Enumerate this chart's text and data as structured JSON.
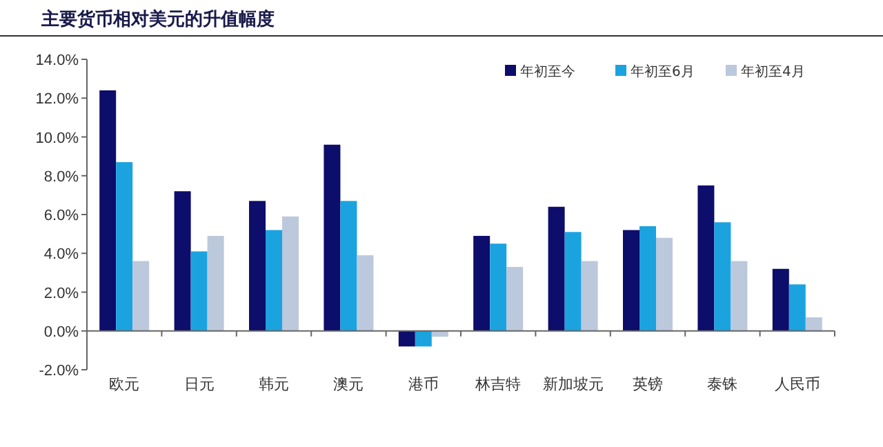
{
  "chart_data": {
    "type": "bar",
    "title": "主要货币相对美元的升值幅度",
    "categories": [
      "欧元",
      "日元",
      "韩元",
      "澳元",
      "港币",
      "林吉特",
      "新加坡元",
      "英镑",
      "泰铢",
      "人民币"
    ],
    "series": [
      {
        "name": "年初至今",
        "color": "#0d0d6b",
        "values": [
          12.4,
          7.2,
          6.7,
          9.6,
          -0.8,
          4.9,
          6.4,
          5.2,
          7.5,
          3.2
        ]
      },
      {
        "name": "年初至6月",
        "color": "#1ba3e0",
        "values": [
          8.7,
          4.1,
          5.2,
          6.7,
          -0.8,
          4.5,
          5.1,
          5.4,
          5.6,
          2.4
        ]
      },
      {
        "name": "年初至4月",
        "color": "#bcc8dc",
        "values": [
          3.6,
          4.9,
          5.9,
          3.9,
          -0.3,
          3.3,
          3.6,
          4.8,
          3.6,
          0.7
        ]
      }
    ],
    "ylim": [
      -2,
      14
    ],
    "yticks": [
      {
        "value": -2,
        "label": "-2.0%"
      },
      {
        "value": 0,
        "label": "0.0%"
      },
      {
        "value": 2,
        "label": "2.0%"
      },
      {
        "value": 4,
        "label": "4.0%"
      },
      {
        "value": 6,
        "label": "6.0%"
      },
      {
        "value": 8,
        "label": "8.0%"
      },
      {
        "value": 10,
        "label": "10.0%"
      },
      {
        "value": 12,
        "label": "12.0%"
      },
      {
        "value": 14,
        "label": "14.0%"
      }
    ],
    "legend": "top right"
  }
}
